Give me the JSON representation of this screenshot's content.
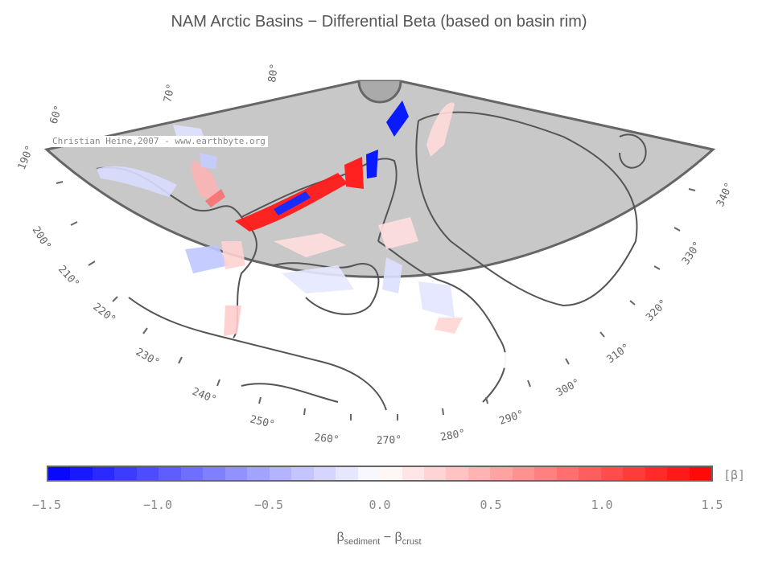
{
  "title": "NAM Arctic Basins − Differential Beta (based on basin rim)",
  "credit": "Christian Heine,2007 - www.earthbyte.org",
  "longitude_labels": [
    "60°",
    "70°",
    "80°",
    "190°",
    "200°",
    "210°",
    "220°",
    "230°",
    "240°",
    "250°",
    "260°",
    "270°",
    "280°",
    "290°",
    "300°",
    "310°",
    "320°",
    "330°",
    "340°"
  ],
  "colorbar": {
    "ticks": [
      "−1.5",
      "−1.0",
      "−0.5",
      "0.0",
      "0.5",
      "1.0",
      "1.5"
    ],
    "unit": "[β]",
    "min": -1.5,
    "max": 1.5,
    "negative_color": "#0000ff",
    "positive_color": "#ff0000",
    "neutral_color": "#ffffff"
  },
  "formula": {
    "beta": "β",
    "sub1": "sediment",
    "minus": " − ",
    "sub2": "crust"
  },
  "colors": {
    "land": "#c8c8c8",
    "coastline": "#555555",
    "frame": "#666666"
  }
}
